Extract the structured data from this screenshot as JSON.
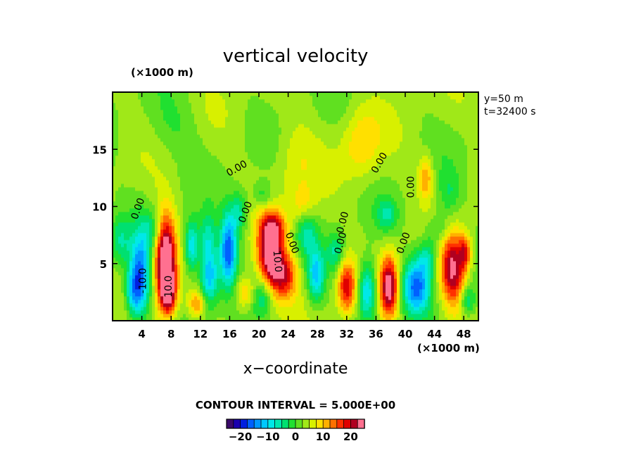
{
  "chart_data": {
    "type": "heatmap",
    "title": "vertical velocity",
    "xlabel": "x−coordinate",
    "x_unit_label": "(×1000 m)",
    "y_unit_label": "(×1000 m)",
    "xlim": [
      0,
      50
    ],
    "ylim": [
      0,
      20
    ],
    "x_ticks": [
      4,
      8,
      12,
      16,
      20,
      24,
      28,
      32,
      36,
      40,
      44,
      48
    ],
    "x_tick_labels": [
      "4",
      "8",
      "12",
      "16",
      "20",
      "24",
      "28",
      "32",
      "36",
      "40",
      "44",
      "48"
    ],
    "y_ticks": [
      5,
      10,
      15
    ],
    "y_tick_labels": [
      "5",
      "10",
      "15"
    ],
    "info_lines": [
      "y=50 m",
      "t=32400 s"
    ],
    "contour_interval_text": "CONTOUR INTERVAL = 5.000E+00",
    "contour_interval": 5.0,
    "grid": false,
    "colorbar": {
      "range": [
        -25,
        25
      ],
      "tick_values": [
        -20,
        -10,
        0,
        10,
        20
      ],
      "tick_labels": [
        "−20",
        "−10",
        "0",
        "10",
        "20"
      ],
      "colors": [
        "#3a0a6a",
        "#1a00b0",
        "#0020e0",
        "#0060ff",
        "#0098ff",
        "#00c8ff",
        "#00e8e8",
        "#00e8b0",
        "#00e070",
        "#20e030",
        "#60e020",
        "#a0e818",
        "#d8f000",
        "#ffe000",
        "#ffb000",
        "#ff7000",
        "#ff3000",
        "#e00000",
        "#b00020",
        "#ff7090"
      ]
    },
    "contour_labels": [
      {
        "text": "0.00",
        "x": 3.5,
        "y": 9.8,
        "angle": -70
      },
      {
        "text": "0.00",
        "x": 17,
        "y": 13.3,
        "angle": -30
      },
      {
        "text": "0.00",
        "x": 18.2,
        "y": 9.5,
        "angle": -70
      },
      {
        "text": "0.00",
        "x": 24.5,
        "y": 6.8,
        "angle": 70
      },
      {
        "text": "0.00",
        "x": 31.5,
        "y": 8.6,
        "angle": -75
      },
      {
        "text": "0.00",
        "x": 31.2,
        "y": 6.8,
        "angle": -75
      },
      {
        "text": "0.00",
        "x": 36.5,
        "y": 13.8,
        "angle": -60
      },
      {
        "text": "0.00",
        "x": 39.8,
        "y": 6.8,
        "angle": -70
      },
      {
        "text": "0.00",
        "x": 40.8,
        "y": 11.7,
        "angle": -90
      },
      {
        "text": "-10.0",
        "x": 4.2,
        "y": 3.5,
        "angle": -90
      },
      {
        "text": "10.0",
        "x": 7.7,
        "y": 3,
        "angle": -90
      },
      {
        "text": "10.0",
        "x": 22.5,
        "y": 5.2,
        "angle": 85
      }
    ],
    "features": [
      {
        "x": 3.8,
        "y": 4,
        "sx": 1.0,
        "sy": 2.6,
        "w": -18
      },
      {
        "x": 2.8,
        "y": 2.5,
        "sx": 0.8,
        "sy": 1.5,
        "w": -10
      },
      {
        "x": 7.2,
        "y": 5.3,
        "sx": 1.0,
        "sy": 2.8,
        "w": 27
      },
      {
        "x": 7.7,
        "y": 2.5,
        "sx": 0.8,
        "sy": 1.4,
        "w": 14
      },
      {
        "x": 10.8,
        "y": 6.5,
        "sx": 0.7,
        "sy": 1.6,
        "w": -14
      },
      {
        "x": 13.2,
        "y": 4.0,
        "sx": 0.9,
        "sy": 1.8,
        "w": -16
      },
      {
        "x": 11.5,
        "y": 1.5,
        "sx": 0.8,
        "sy": 0.8,
        "w": 10
      },
      {
        "x": 13.0,
        "y": 7.5,
        "sx": 0.8,
        "sy": 1.4,
        "w": -8
      },
      {
        "x": 15.8,
        "y": 6.2,
        "sx": 0.8,
        "sy": 2.2,
        "w": -20
      },
      {
        "x": 17.3,
        "y": 9.5,
        "sx": 0.8,
        "sy": 1.3,
        "w": -9
      },
      {
        "x": 18.2,
        "y": 2.5,
        "sx": 1.0,
        "sy": 1.0,
        "w": 9
      },
      {
        "x": 21.5,
        "y": 6.0,
        "sx": 1.2,
        "sy": 2.2,
        "w": 22
      },
      {
        "x": 23.5,
        "y": 4.0,
        "sx": 1.3,
        "sy": 1.6,
        "w": 15
      },
      {
        "x": 22.2,
        "y": 8.2,
        "sx": 1.2,
        "sy": 0.9,
        "w": 9
      },
      {
        "x": 20.5,
        "y": 2.2,
        "sx": 1.0,
        "sy": 1.2,
        "w": -8
      },
      {
        "x": 26.5,
        "y": 7.8,
        "sx": 1.0,
        "sy": 1.4,
        "w": -8
      },
      {
        "x": 27.8,
        "y": 4.0,
        "sx": 0.8,
        "sy": 1.6,
        "w": -13
      },
      {
        "x": 30.5,
        "y": 6.0,
        "sx": 0.8,
        "sy": 1.2,
        "w": -8
      },
      {
        "x": 32.0,
        "y": 3.0,
        "sx": 0.9,
        "sy": 1.6,
        "w": 16
      },
      {
        "x": 34.8,
        "y": 2.6,
        "sx": 0.9,
        "sy": 1.8,
        "w": -15
      },
      {
        "x": 37.8,
        "y": 3.0,
        "sx": 0.9,
        "sy": 1.9,
        "w": 22
      },
      {
        "x": 41.5,
        "y": 3.0,
        "sx": 1.3,
        "sy": 1.6,
        "w": -18
      },
      {
        "x": 43.0,
        "y": 5.5,
        "sx": 1.0,
        "sy": 1.2,
        "w": -9
      },
      {
        "x": 46.5,
        "y": 4.5,
        "sx": 1.2,
        "sy": 2.3,
        "w": 20
      },
      {
        "x": 48.2,
        "y": 6.0,
        "sx": 0.6,
        "sy": 1.0,
        "w": 12
      },
      {
        "x": 48.5,
        "y": 1.8,
        "sx": 0.7,
        "sy": 0.9,
        "w": -9
      },
      {
        "x": 42.8,
        "y": 12.5,
        "sx": 0.7,
        "sy": 1.3,
        "w": 10
      },
      {
        "x": 34.0,
        "y": 15.5,
        "sx": 1.8,
        "sy": 2.2,
        "w": 7
      },
      {
        "x": 37.5,
        "y": 9.3,
        "sx": 1.0,
        "sy": 1.0,
        "w": -7
      },
      {
        "x": 44.5,
        "y": 8.0,
        "sx": 1.2,
        "sy": 1.0,
        "w": -6
      },
      {
        "x": 1.0,
        "y": 7.0,
        "sx": 1.0,
        "sy": 1.5,
        "w": -7
      },
      {
        "x": 5.5,
        "y": 8.0,
        "sx": 1.0,
        "sy": 1.2,
        "w": -6
      },
      {
        "x": 25.0,
        "y": 14.0,
        "sx": 2.0,
        "sy": 2.5,
        "w": 4
      },
      {
        "x": 8.0,
        "y": 17.0,
        "sx": 2.5,
        "sy": 2.0,
        "w": -3
      },
      {
        "x": 26.0,
        "y": 10.0,
        "sx": 1.2,
        "sy": 1.2,
        "w": 6
      },
      {
        "x": 20.5,
        "y": 11.0,
        "sx": 1.0,
        "sy": 0.8,
        "w": -6
      },
      {
        "x": 46.0,
        "y": 11.0,
        "sx": 1.0,
        "sy": 1.5,
        "w": -5
      }
    ]
  }
}
